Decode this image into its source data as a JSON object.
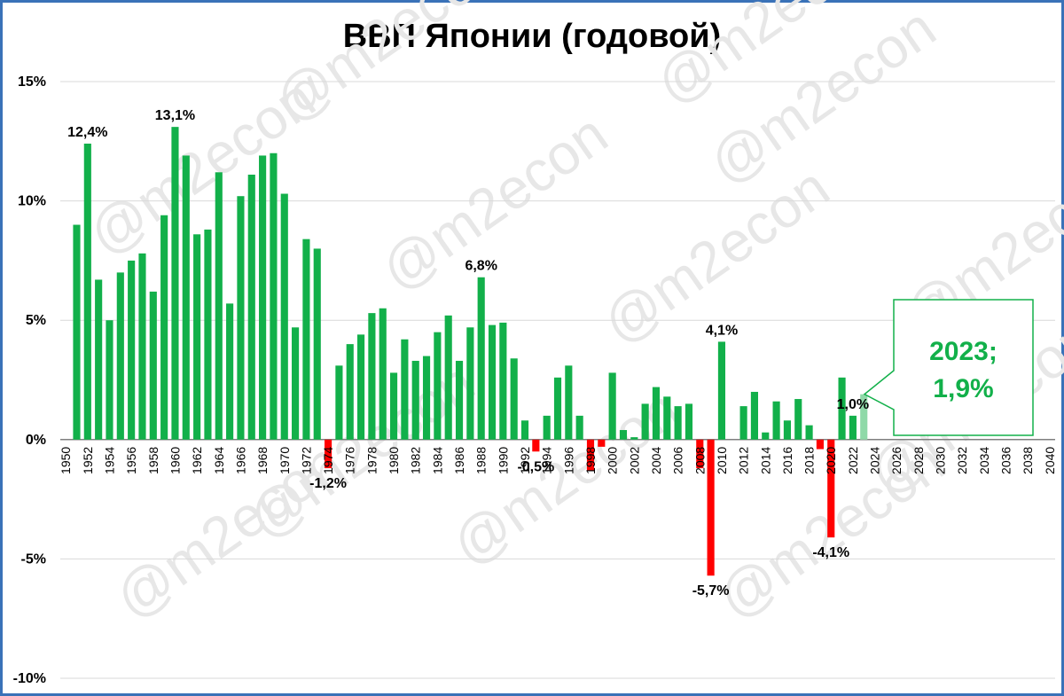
{
  "chart_data": {
    "type": "bar",
    "title": "ВВП Японии (годовой)",
    "watermark": "@m2econ",
    "x_range": [
      1950,
      2040
    ],
    "x_tick_labels": [
      "1950",
      "1952",
      "1954",
      "1956",
      "1958",
      "1960",
      "1962",
      "1964",
      "1966",
      "1968",
      "1970",
      "1972",
      "1974",
      "1976",
      "1978",
      "1980",
      "1982",
      "1984",
      "1986",
      "1988",
      "1990",
      "1992",
      "1994",
      "1996",
      "1998",
      "2000",
      "2002",
      "2004",
      "2006",
      "2008",
      "2010",
      "2012",
      "2014",
      "2016",
      "2018",
      "2020",
      "2022",
      "2024",
      "2026",
      "2028",
      "2030",
      "2032",
      "2034",
      "2036",
      "2038",
      "2040"
    ],
    "y_ticks": [
      15,
      10,
      5,
      0,
      -5,
      -10
    ],
    "y_tick_labels": [
      "15%",
      "10%",
      "5%",
      "0%",
      "-5%",
      "-10%"
    ],
    "ylim": [
      -10,
      15
    ],
    "grid": "horizontal",
    "colors": {
      "positive": "#12b04a",
      "negative": "#ff0000",
      "latest": "#8fd9a8",
      "frame": "#3a72b8",
      "callout_text": "#12b04a"
    },
    "series": [
      {
        "x": [
          1951,
          1952,
          1953,
          1954,
          1955,
          1956,
          1957,
          1958,
          1959,
          1960,
          1961,
          1962,
          1963,
          1964,
          1965,
          1966,
          1967,
          1968,
          1969,
          1970,
          1971,
          1972,
          1973,
          1974,
          1975,
          1976,
          1977,
          1978,
          1979,
          1980,
          1981,
          1982,
          1983,
          1984,
          1985,
          1986,
          1987,
          1988,
          1989,
          1990,
          1991,
          1992,
          1993,
          1994,
          1995,
          1996,
          1997,
          1998,
          1999,
          2000,
          2001,
          2002,
          2003,
          2004,
          2005,
          2006,
          2007,
          2008,
          2009,
          2010,
          2011,
          2012,
          2013,
          2014,
          2015,
          2016,
          2017,
          2018,
          2019,
          2020,
          2021,
          2022,
          2023
        ],
        "values": [
          9.0,
          12.4,
          6.7,
          5.0,
          7.0,
          7.5,
          7.8,
          6.2,
          9.4,
          13.1,
          11.9,
          8.6,
          8.8,
          11.2,
          5.7,
          10.2,
          11.1,
          11.9,
          12.0,
          10.3,
          4.7,
          8.4,
          8.0,
          -1.2,
          3.1,
          4.0,
          4.4,
          5.3,
          5.5,
          2.8,
          4.2,
          3.3,
          3.5,
          4.5,
          5.2,
          3.3,
          4.7,
          6.8,
          4.8,
          4.9,
          3.4,
          0.8,
          -0.5,
          1.0,
          2.6,
          3.1,
          1.0,
          -1.3,
          -0.3,
          2.8,
          0.4,
          0.1,
          1.5,
          2.2,
          1.8,
          1.4,
          1.5,
          -1.2,
          -5.7,
          4.1,
          0.0,
          1.4,
          2.0,
          0.3,
          1.6,
          0.8,
          1.7,
          0.6,
          -0.4,
          -4.1,
          2.6,
          1.0,
          1.9
        ]
      }
    ],
    "data_labels": [
      {
        "x": 1952,
        "text": "12,4%"
      },
      {
        "x": 1960,
        "text": "13,1%"
      },
      {
        "x": 1974,
        "text": "-1,2%"
      },
      {
        "x": 1988,
        "text": "6,8%"
      },
      {
        "x": 1993,
        "text": "-0,5%"
      },
      {
        "x": 2009,
        "text": "-5,7%"
      },
      {
        "x": 2010,
        "text": "4,1%"
      },
      {
        "x": 2020,
        "text": "-4,1%"
      },
      {
        "x": 2022,
        "text": "1,0%"
      }
    ],
    "callout": {
      "line1": "2023;",
      "line2": "1,9%"
    }
  }
}
